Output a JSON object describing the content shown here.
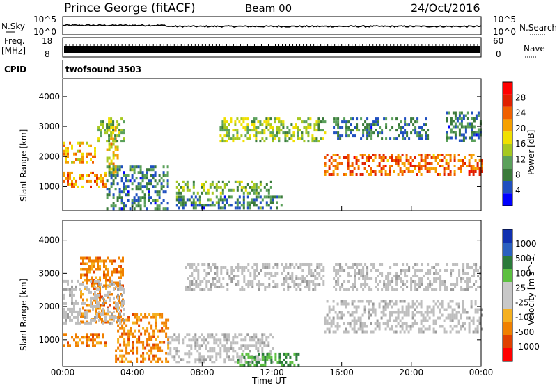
{
  "header": {
    "station": "Prince George (fitACF)",
    "beam": "Beam 00",
    "date": "24/Oct/2016"
  },
  "top_panels": {
    "nsky_label": "N.Sky",
    "nsky_top_tick": "10^5",
    "nsky_bottom_tick": "10^0",
    "nsearch_label": "N.Search",
    "nsearch_top_tick": "10^5",
    "nsearch_bottom_tick": "10^0",
    "freq_label_1": "Freq.",
    "freq_label_2": "[MHz]",
    "freq_top_tick": "18",
    "freq_bottom_tick": "8",
    "nave_label": "Nave",
    "nave_top_tick": "60",
    "nave_bottom_tick": "0",
    "cpid_label": "CPID",
    "cpid_value": "twofsound 3503"
  },
  "colors": {
    "power_scale": [
      "#0000ff",
      "#1f4fbf",
      "#3a7a3a",
      "#5aa05a",
      "#a6c820",
      "#f0e000",
      "#f5a000",
      "#f06000",
      "#e02000",
      "#ff0000"
    ],
    "velocity_scale": [
      "#1030b0",
      "#2a60c0",
      "#2a7a3a",
      "#5cc040",
      "#c8c8c8",
      "#c8c8c8",
      "#f5b020",
      "#f08000",
      "#e04000",
      "#ff0000"
    ],
    "ground_scatter": "#bebebe"
  },
  "chart_data": [
    {
      "type": "heatmap",
      "title": "Power",
      "ylabel": "Slant Range [km]",
      "xlabel": "Time UT",
      "x_ticks": [
        "00:00",
        "04:00",
        "08:00",
        "12:00",
        "16:00",
        "20:00",
        "00:00"
      ],
      "x_range_hours": [
        0,
        24
      ],
      "y_ticks": [
        "1000",
        "2000",
        "3000",
        "4000"
      ],
      "ylim": [
        200,
        4600
      ],
      "colorbar_label": "Power [dB]",
      "colorbar_ticks": [
        "4",
        "8",
        "12",
        "16",
        "20",
        "24",
        "28"
      ],
      "colorbar_range": [
        0,
        32
      ],
      "echo_bands": [
        {
          "hours": [
            0.0,
            2.5
          ],
          "range_km": [
            1000,
            1500
          ],
          "power_db": 22
        },
        {
          "hours": [
            2.5,
            3.2
          ],
          "range_km": [
            1400,
            3200
          ],
          "power_db": 18
        },
        {
          "hours": [
            0.0,
            1.8
          ],
          "range_km": [
            1800,
            2500
          ],
          "power_db": 20
        },
        {
          "hours": [
            2.0,
            3.5
          ],
          "range_km": [
            2500,
            3300
          ],
          "power_db": 12
        },
        {
          "hours": [
            2.5,
            6.0
          ],
          "range_km": [
            300,
            1700
          ],
          "power_db": 8
        },
        {
          "hours": [
            6.5,
            12.0
          ],
          "range_km": [
            800,
            1200
          ],
          "power_db": 12
        },
        {
          "hours": [
            6.5,
            12.5
          ],
          "range_km": [
            250,
            700
          ],
          "power_db": 8
        },
        {
          "hours": [
            9.0,
            15.0
          ],
          "range_km": [
            2500,
            3300
          ],
          "power_db": 14
        },
        {
          "hours": [
            15.0,
            24.0
          ],
          "range_km": [
            1400,
            2100
          ],
          "power_db": 24
        },
        {
          "hours": [
            15.5,
            21.0
          ],
          "range_km": [
            2600,
            3300
          ],
          "power_db": 8
        },
        {
          "hours": [
            22.0,
            24.0
          ],
          "range_km": [
            2500,
            3500
          ],
          "power_db": 8
        }
      ]
    },
    {
      "type": "heatmap",
      "title": "Velocity",
      "ylabel": "Slant Range [km]",
      "xlabel": "Time UT",
      "x_ticks": [
        "00:00",
        "04:00",
        "08:00",
        "12:00",
        "16:00",
        "20:00",
        "00:00"
      ],
      "x_range_hours": [
        0,
        24
      ],
      "y_ticks": [
        "1000",
        "2000",
        "3000",
        "4000"
      ],
      "ylim": [
        200,
        4600
      ],
      "colorbar_label": "Velocity [m s^-1]",
      "colorbar_ticks": [
        "1000",
        "500",
        "100",
        "25",
        "-25",
        "-100",
        "-500",
        "-1000"
      ],
      "echo_bands": [
        {
          "hours": [
            0.0,
            2.5
          ],
          "range_km": [
            800,
            1200
          ],
          "velocity_ms": -300
        },
        {
          "hours": [
            1.0,
            3.5
          ],
          "range_km": [
            1500,
            3500
          ],
          "velocity_ms": -400
        },
        {
          "hours": [
            3.0,
            6.0
          ],
          "range_km": [
            300,
            1800
          ],
          "velocity_ms": -300
        },
        {
          "hours": [
            0.0,
            3.5
          ],
          "range_km": [
            1500,
            2800
          ],
          "velocity_ms": 0
        },
        {
          "hours": [
            6.0,
            12.0
          ],
          "range_km": [
            300,
            1200
          ],
          "velocity_ms": 0
        },
        {
          "hours": [
            10.0,
            13.5
          ],
          "range_km": [
            250,
            600
          ],
          "velocity_ms": 200
        },
        {
          "hours": [
            7.0,
            15.0
          ],
          "range_km": [
            2500,
            3300
          ],
          "velocity_ms": 0
        },
        {
          "hours": [
            15.0,
            24.0
          ],
          "range_km": [
            1200,
            2200
          ],
          "velocity_ms": 0
        },
        {
          "hours": [
            15.5,
            24.0
          ],
          "range_km": [
            2500,
            3300
          ],
          "velocity_ms": 0
        }
      ]
    }
  ]
}
